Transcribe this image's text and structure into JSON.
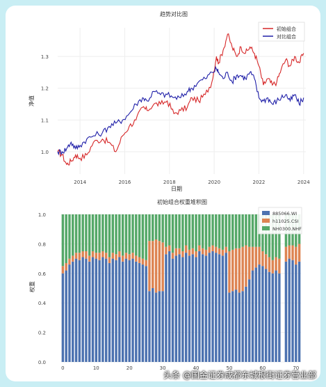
{
  "colors": {
    "background": "#c9eef4",
    "initial": "#d62728",
    "comparison": "#1f1fa8",
    "s1": "#4c72b0",
    "s2": "#dd8452",
    "s3": "#55a868"
  },
  "chart_data": [
    {
      "type": "line",
      "title": "趋势对比图",
      "xlabel": "日期",
      "ylabel": "净值",
      "xlim": [
        2013.0,
        2024.1
      ],
      "ylim": [
        0.93,
        1.39
      ],
      "xticks": [
        "2014",
        "2016",
        "2018",
        "2020",
        "2022",
        "2024"
      ],
      "yticks": [
        "1.0",
        "1.1",
        "1.2",
        "1.3"
      ],
      "legend_position": "top-right",
      "grid": true,
      "series": [
        {
          "name": "初始组合",
          "x": [
            2013.0,
            2013.2,
            2013.4,
            2013.6,
            2013.8,
            2014.0,
            2014.3,
            2014.6,
            2015.0,
            2015.3,
            2015.6,
            2015.9,
            2016.2,
            2016.5,
            2016.8,
            2017.0,
            2017.3,
            2017.6,
            2017.9,
            2018.2,
            2018.5,
            2018.8,
            2019.0,
            2019.3,
            2019.6,
            2019.9,
            2020.1,
            2020.2,
            2020.4,
            2020.6,
            2020.8,
            2021.0,
            2021.2,
            2021.4,
            2021.6,
            2021.8,
            2022.0,
            2022.2,
            2022.4,
            2022.6,
            2022.8,
            2023.0,
            2023.2,
            2023.4,
            2023.6,
            2023.8,
            2024.0
          ],
          "values": [
            1.0,
            0.99,
            0.96,
            0.97,
            0.99,
            0.98,
            0.99,
            1.03,
            1.04,
            1.03,
            1.0,
            1.05,
            1.08,
            1.1,
            1.14,
            1.13,
            1.15,
            1.15,
            1.16,
            1.12,
            1.13,
            1.14,
            1.17,
            1.16,
            1.18,
            1.22,
            1.3,
            1.28,
            1.32,
            1.37,
            1.33,
            1.3,
            1.33,
            1.31,
            1.33,
            1.31,
            1.27,
            1.21,
            1.23,
            1.21,
            1.22,
            1.26,
            1.29,
            1.27,
            1.3,
            1.28,
            1.31
          ]
        },
        {
          "name": "对比组合",
          "x": [
            2013.0,
            2013.2,
            2013.4,
            2013.6,
            2013.8,
            2014.0,
            2014.3,
            2014.6,
            2015.0,
            2015.3,
            2015.6,
            2015.9,
            2016.2,
            2016.5,
            2016.8,
            2017.0,
            2017.3,
            2017.6,
            2017.9,
            2018.2,
            2018.5,
            2018.8,
            2019.0,
            2019.3,
            2019.6,
            2019.9,
            2020.1,
            2020.2,
            2020.4,
            2020.6,
            2020.8,
            2021.0,
            2021.2,
            2021.4,
            2021.6,
            2021.8,
            2022.0,
            2022.2,
            2022.4,
            2022.6,
            2022.8,
            2023.0,
            2023.2,
            2023.4,
            2023.6,
            2023.8,
            2024.0
          ],
          "values": [
            1.0,
            1.0,
            1.01,
            1.03,
            1.01,
            1.02,
            1.04,
            1.05,
            1.06,
            1.08,
            1.09,
            1.1,
            1.12,
            1.15,
            1.17,
            1.16,
            1.19,
            1.18,
            1.18,
            1.17,
            1.17,
            1.19,
            1.2,
            1.22,
            1.23,
            1.25,
            1.26,
            1.25,
            1.23,
            1.25,
            1.22,
            1.24,
            1.24,
            1.23,
            1.25,
            1.23,
            1.17,
            1.16,
            1.17,
            1.15,
            1.16,
            1.17,
            1.18,
            1.16,
            1.18,
            1.15,
            1.17
          ]
        }
      ]
    },
    {
      "type": "bar",
      "stacked": true,
      "title": "初始组合权重堆积图",
      "ylabel": "权重",
      "ylim": [
        0,
        1.0
      ],
      "yticks": [
        "0.0",
        "0.2",
        "0.4",
        "0.6",
        "0.8",
        "1.0"
      ],
      "xticks": [
        "0",
        "10",
        "20",
        "30",
        "40",
        "50",
        "60",
        "70"
      ],
      "legend_position": "top-right",
      "grid": true,
      "series": [
        {
          "name": "885066.WI",
          "values": [
            0.6,
            0.62,
            0.66,
            0.68,
            0.7,
            0.69,
            0.71,
            0.7,
            0.68,
            0.71,
            0.7,
            0.69,
            0.71,
            0.7,
            0.67,
            0.7,
            0.69,
            0.71,
            0.68,
            0.7,
            0.69,
            0.7,
            0.68,
            0.67,
            0.66,
            0.65,
            0.48,
            0.5,
            0.47,
            0.48,
            0.48,
            0.73,
            0.75,
            0.7,
            0.72,
            0.73,
            0.71,
            0.74,
            0.72,
            0.73,
            0.71,
            0.75,
            0.73,
            0.72,
            0.74,
            0.75,
            0.74,
            0.73,
            0.72,
            0.74,
            0.47,
            0.48,
            0.49,
            0.47,
            0.48,
            0.51,
            0.56,
            0.62,
            0.64,
            0.66,
            0.65,
            0.63,
            0.61,
            0.6,
            0.62,
            0.6,
            null,
            0.68,
            0.7,
            0.69,
            0.66,
            0.68
          ]
        },
        {
          "name": "h11025.CSI",
          "values": [
            0.05,
            0.05,
            0.04,
            0.04,
            0.04,
            0.05,
            0.04,
            0.05,
            0.04,
            0.04,
            0.04,
            0.05,
            0.04,
            0.04,
            0.04,
            0.04,
            0.04,
            0.04,
            0.04,
            0.04,
            0.04,
            0.04,
            0.04,
            0.04,
            0.04,
            0.04,
            0.34,
            0.32,
            0.36,
            0.34,
            0.33,
            0.05,
            0.04,
            0.04,
            0.05,
            0.04,
            0.04,
            0.05,
            0.04,
            0.04,
            0.04,
            0.04,
            0.04,
            0.04,
            0.04,
            0.04,
            0.04,
            0.04,
            0.04,
            0.04,
            0.28,
            0.28,
            0.28,
            0.3,
            0.3,
            0.28,
            0.22,
            0.16,
            0.14,
            0.12,
            0.1,
            0.1,
            0.1,
            0.09,
            0.09,
            0.1,
            null,
            0.1,
            0.09,
            0.1,
            0.12,
            0.12
          ]
        },
        {
          "name": "NH0300.NHF",
          "values": [
            0.35,
            0.33,
            0.3,
            0.28,
            0.26,
            0.26,
            0.25,
            0.25,
            0.28,
            0.25,
            0.26,
            0.26,
            0.25,
            0.26,
            0.29,
            0.26,
            0.27,
            0.25,
            0.28,
            0.26,
            0.27,
            0.26,
            0.28,
            0.29,
            0.3,
            0.31,
            0.18,
            0.18,
            0.17,
            0.18,
            0.19,
            0.22,
            0.21,
            0.26,
            0.23,
            0.23,
            0.25,
            0.21,
            0.24,
            0.23,
            0.25,
            0.21,
            0.23,
            0.24,
            0.22,
            0.21,
            0.22,
            0.23,
            0.24,
            0.22,
            0.25,
            0.24,
            0.23,
            0.23,
            0.22,
            0.21,
            0.22,
            0.22,
            0.22,
            0.22,
            0.25,
            0.27,
            0.29,
            0.31,
            0.29,
            0.3,
            null,
            0.22,
            0.21,
            0.21,
            0.22,
            0.2
          ]
        }
      ]
    }
  ],
  "watermark": "头条 @国金证券成都东城根街证券营业部"
}
